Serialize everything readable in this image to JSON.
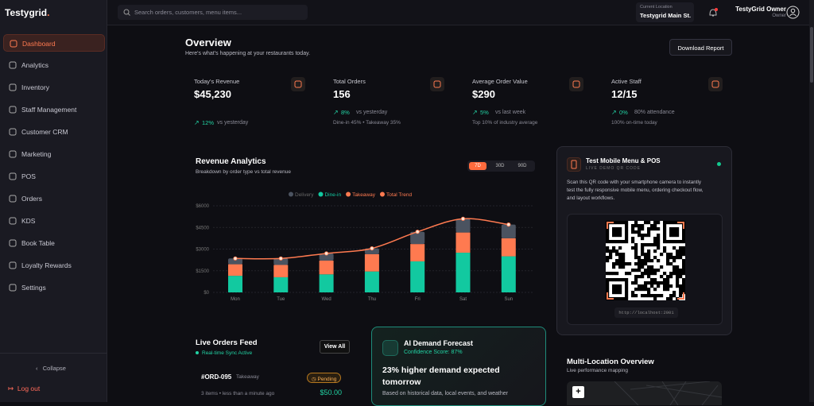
{
  "sidebar": {
    "logo": "Testygrid",
    "nav": [
      "Dashboard",
      "Analytics",
      "Inventory",
      "Staff Management",
      "Customer CRM",
      "Marketing",
      "POS",
      "Orders",
      "KDS",
      "Book Table",
      "Loyalty Rewards",
      "Settings"
    ],
    "collapse": "Collapse",
    "logout": "Log out"
  },
  "topbar": {
    "search_placeholder": "Search orders, customers, menu items...",
    "location_label": "Current Location",
    "location": "Testygrid Main St.",
    "user_name": "TestyGrid Owner",
    "user_role": "Owner"
  },
  "header": {
    "title": "Overview",
    "subtitle": "Here's what's happening at your restaurants today.",
    "button": "Download Report"
  },
  "stats": [
    {
      "label": "Today's Revenue",
      "value": "$45,230",
      "change": "12%",
      "change_note": "vs yesterday",
      "detail": null
    },
    {
      "label": "Total Orders",
      "value": "156",
      "change": "8%",
      "change_note": "vs yesterday",
      "detail": "Dine-in 45% • Takeaway 35%"
    },
    {
      "label": "Average Order Value",
      "value": "$290",
      "change": "5%",
      "change_note": "vs last week",
      "detail": "Top 10% of industry average"
    },
    {
      "label": "Active Staff",
      "value": "12/15",
      "change": "0%",
      "change_note": "80% attendance",
      "detail": "100% on-time today"
    }
  ],
  "revenue_analytics": {
    "title": "Revenue Analytics",
    "subtitle": "Breakdown by order type vs total revenue",
    "ranges": [
      "7D",
      "30D",
      "90D"
    ],
    "chart": {
      "type": "bar",
      "categories": [
        "Mon",
        "Tue",
        "Wed",
        "Thu",
        "Fri",
        "Sat",
        "Sun"
      ],
      "series": [
        {
          "name": "Delivery",
          "color": "#4b5360",
          "values": [
            400,
            450,
            500,
            400,
            850,
            950,
            950
          ]
        },
        {
          "name": "Dine-in",
          "color": "#12c9a0",
          "values": [
            1150,
            1050,
            1250,
            1450,
            2150,
            2750,
            2500
          ]
        },
        {
          "name": "Takeaway",
          "color": "#ff7a50",
          "values": [
            800,
            850,
            950,
            1200,
            1200,
            1400,
            1250
          ]
        },
        {
          "name": "Total Trend",
          "color": "#ff7a50",
          "type": "line",
          "values": [
            2350,
            2350,
            2700,
            3050,
            4200,
            5100,
            4700
          ]
        }
      ],
      "ylim": [
        0,
        6000
      ],
      "yticks": [
        {
          "value": 0,
          "label": "$0"
        },
        {
          "value": 1500,
          "label": "$1500"
        },
        {
          "value": 3000,
          "label": "$3000"
        },
        {
          "value": 4500,
          "label": "$4500"
        },
        {
          "value": 6000,
          "label": "$6000"
        }
      ],
      "grid": true,
      "legend": "top"
    }
  },
  "qr_card": {
    "title": "Test Mobile Menu & POS",
    "subtitle": "LIVE DEMO QR CODE",
    "text": [
      "Scan this QR code with your smartphone camera to instantly",
      "test the fully responsive mobile menu, ordering checkout flow,",
      "and layout workflows."
    ],
    "url": "http://localhost:2001"
  },
  "live_orders": {
    "title": "Live Orders Feed",
    "status": "Real-time Sync Active",
    "button": "View All",
    "order": {
      "id": "#ORD-095",
      "type": "Takeaway",
      "status": "Pending",
      "meta": "3 items • less than a minute ago",
      "amount": "$50.00"
    }
  },
  "forecast": {
    "title": "AI Demand Forecast",
    "confidence": "Confidence Score: 87%",
    "headline": [
      "23% higher demand expected",
      "tomorrow"
    ],
    "text": "Based on historical data, local events, and weather"
  },
  "locations": {
    "title": "Multi-Location Overview",
    "subtitle": "Live performance mapping",
    "zoom": "+"
  }
}
